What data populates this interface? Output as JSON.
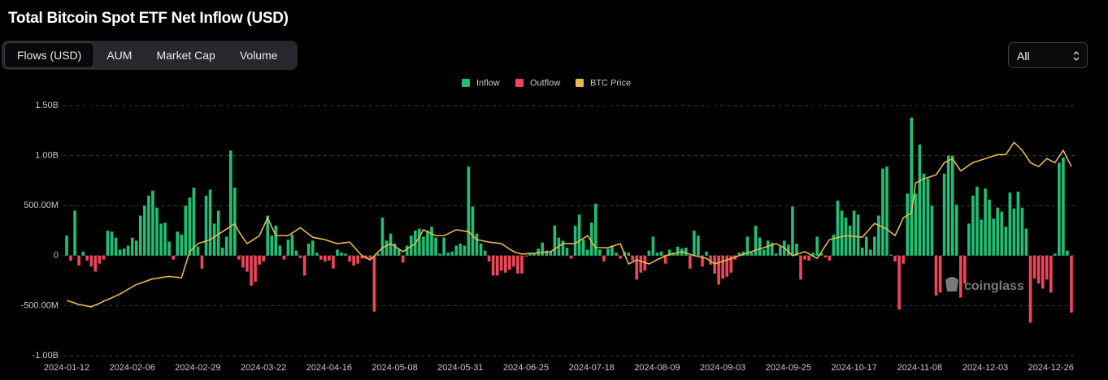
{
  "tabs": [
    "Flows (USD)",
    "AUM",
    "Market Cap",
    "Volume"
  ],
  "range_select": "All",
  "watermark": "coinglass",
  "chart_data": {
    "type": "bar",
    "title": "Total Bitcoin Spot ETF Net Inflow (USD)",
    "ylim": [
      -1000000000.0,
      1500000000.0
    ],
    "yticks": [
      {
        "value": 1500000000.0,
        "label": "1.50B"
      },
      {
        "value": 1000000000.0,
        "label": "1.00B"
      },
      {
        "value": 500000000.0,
        "label": "500.00M"
      },
      0,
      {
        "value": -500000000.0,
        "label": "-500.00M"
      },
      {
        "value": -1000000000.0,
        "label": "-1.00B"
      }
    ],
    "y2lim": [
      25300,
      119100
    ],
    "grid": true,
    "legend": "top",
    "categories": [
      "2024-01-12",
      null,
      null,
      null,
      null,
      null,
      null,
      null,
      null,
      null,
      null,
      null,
      null,
      null,
      null,
      null,
      "2024-02-06",
      null,
      null,
      null,
      null,
      null,
      null,
      null,
      null,
      null,
      null,
      null,
      null,
      null,
      null,
      null,
      "2024-02-29",
      null,
      null,
      null,
      null,
      null,
      null,
      null,
      null,
      null,
      null,
      null,
      null,
      null,
      null,
      null,
      "2024-03-22",
      null,
      null,
      null,
      null,
      null,
      null,
      null,
      null,
      null,
      null,
      null,
      null,
      null,
      null,
      null,
      "2024-04-16",
      null,
      null,
      null,
      null,
      null,
      null,
      null,
      null,
      null,
      null,
      null,
      null,
      null,
      null,
      null,
      "2024-05-08",
      null,
      null,
      null,
      null,
      null,
      null,
      null,
      null,
      null,
      null,
      null,
      null,
      null,
      null,
      null,
      "2024-05-31",
      null,
      null,
      null,
      null,
      null,
      null,
      null,
      null,
      null,
      null,
      null,
      null,
      null,
      null,
      null,
      "2024-06-25",
      null,
      null,
      null,
      null,
      null,
      null,
      null,
      null,
      null,
      null,
      null,
      null,
      null,
      null,
      null,
      "2024-07-18",
      null,
      null,
      null,
      null,
      null,
      null,
      null,
      null,
      null,
      null,
      null,
      null,
      null,
      null,
      null,
      "2024-08-09",
      null,
      null,
      null,
      null,
      null,
      null,
      null,
      null,
      null,
      null,
      null,
      null,
      null,
      null,
      null,
      "2024-09-03",
      null,
      null,
      null,
      null,
      null,
      null,
      null,
      null,
      null,
      null,
      null,
      null,
      null,
      null,
      null,
      "2024-09-25",
      null,
      null,
      null,
      null,
      null,
      null,
      null,
      null,
      null,
      null,
      null,
      null,
      null,
      null,
      null,
      "2024-10-17",
      null,
      null,
      null,
      null,
      null,
      null,
      null,
      null,
      null,
      null,
      null,
      null,
      null,
      null,
      null,
      "2024-11-08",
      null,
      null,
      null,
      null,
      null,
      null,
      null,
      null,
      null,
      null,
      null,
      null,
      null,
      null,
      null,
      "2024-12-03",
      null,
      null,
      null,
      null,
      null,
      null,
      null,
      null,
      null,
      null,
      null,
      null,
      null,
      null,
      null,
      "2024-12-26",
      null,
      null,
      null,
      null,
      null
    ],
    "series": [
      {
        "name": "Inflow",
        "color": "#1fbf75",
        "values": [
          200000000.0,
          null,
          450000000.0,
          null,
          40000000.0,
          null,
          null,
          null,
          null,
          null,
          250000000.0,
          240000000.0,
          180000000.0,
          60000000.0,
          70000000.0,
          100000000.0,
          180000000.0,
          150000000.0,
          400000000.0,
          500000000.0,
          600000000.0,
          650000000.0,
          480000000.0,
          320000000.0,
          330000000.0,
          140000000.0,
          null,
          240000000.0,
          210000000.0,
          500000000.0,
          580000000.0,
          680000000.0,
          90000000.0,
          null,
          600000000.0,
          660000000.0,
          320000000.0,
          450000000.0,
          80000000.0,
          190000000.0,
          1050000000.0,
          680000000.0,
          null,
          null,
          null,
          null,
          null,
          null,
          null,
          400000000.0,
          200000000.0,
          300000000.0,
          100000000.0,
          null,
          160000000.0,
          210000000.0,
          50000000.0,
          null,
          null,
          120000000.0,
          150000000.0,
          30000000.0,
          null,
          null,
          null,
          null,
          60000000.0,
          30000000.0,
          20000000.0,
          null,
          null,
          null,
          null,
          null,
          null,
          null,
          20000000.0,
          380000000.0,
          150000000.0,
          220000000.0,
          120000000.0,
          60000000.0,
          null,
          100000000.0,
          200000000.0,
          250000000.0,
          270000000.0,
          190000000.0,
          250000000.0,
          290000000.0,
          180000000.0,
          20000000.0,
          180000000.0,
          30000000.0,
          40000000.0,
          100000000.0,
          120000000.0,
          100000000.0,
          890000000.0,
          490000000.0,
          220000000.0,
          120000000.0,
          50000000.0,
          null,
          null,
          null,
          null,
          null,
          null,
          null,
          null,
          null,
          null,
          30000000.0,
          20000000.0,
          70000000.0,
          130000000.0,
          50000000.0,
          40000000.0,
          300000000.0,
          180000000.0,
          150000000.0,
          80000000.0,
          null,
          300000000.0,
          410000000.0,
          160000000.0,
          60000000.0,
          330000000.0,
          520000000.0,
          60000000.0,
          null,
          70000000.0,
          100000000.0,
          30000000.0,
          null,
          40000000.0,
          30000000.0,
          null,
          null,
          null,
          null,
          50000000.0,
          190000000.0,
          30000000.0,
          40000000.0,
          null,
          60000000.0,
          30000000.0,
          90000000.0,
          70000000.0,
          80000000.0,
          null,
          250000000.0,
          200000000.0,
          null,
          40000000.0,
          null,
          null,
          null,
          null,
          null,
          null,
          null,
          30000000.0,
          40000000.0,
          190000000.0,
          30000000.0,
          300000000.0,
          180000000.0,
          60000000.0,
          150000000.0,
          130000000.0,
          20000000.0,
          90000000.0,
          150000000.0,
          110000000.0,
          490000000.0,
          120000000.0,
          null,
          null,
          null,
          30000000.0,
          190000000.0,
          30000000.0,
          null,
          null,
          210000000.0,
          550000000.0,
          450000000.0,
          380000000.0,
          300000000.0,
          450000000.0,
          410000000.0,
          80000000.0,
          190000000.0,
          60000000.0,
          190000000.0,
          400000000.0,
          870000000.0,
          890000000.0,
          10000000.0,
          null,
          null,
          null,
          620000000.0,
          1380000000.0,
          620000000.0,
          1110000000.0,
          820000000.0,
          770000000.0,
          500000000.0,
          null,
          null,
          820000000.0,
          1000000000.0,
          1000000000.0,
          510000000.0,
          null,
          null,
          320000000.0,
          600000000.0,
          690000000.0,
          360000000.0,
          670000000.0,
          560000000.0,
          370000000.0,
          480000000.0,
          440000000.0,
          290000000.0,
          630000000.0,
          470000000.0,
          640000000.0,
          480000000.0,
          270000000.0,
          null,
          null,
          null,
          null,
          null,
          null,
          20000000.0,
          930000000.0,
          980000000.0,
          50000000.0,
          null
        ]
      },
      {
        "name": "Outflow",
        "color": "#f0465a",
        "values": [
          null,
          -50000000.0,
          null,
          -100000000.0,
          null,
          -50000000.0,
          -110000000.0,
          -160000000.0,
          -80000000.0,
          -40000000.0,
          null,
          null,
          null,
          null,
          null,
          null,
          null,
          null,
          null,
          null,
          null,
          null,
          null,
          null,
          null,
          null,
          -40000000.0,
          null,
          null,
          null,
          null,
          null,
          null,
          -130000000.0,
          null,
          null,
          null,
          null,
          null,
          null,
          null,
          null,
          -40000000.0,
          -120000000.0,
          -160000000.0,
          -300000000.0,
          -260000000.0,
          -90000000.0,
          -60000000.0,
          null,
          null,
          null,
          null,
          -40000000.0,
          null,
          null,
          null,
          -25000000.0,
          -200000000.0,
          null,
          null,
          null,
          -40000000.0,
          -60000000.0,
          -50000000.0,
          -130000000.0,
          null,
          null,
          null,
          -60000000.0,
          -100000000.0,
          -80000000.0,
          -30000000.0,
          -30000000.0,
          -30000000.0,
          -560000000.0,
          null,
          null,
          null,
          null,
          null,
          null,
          -70000000.0,
          null,
          null,
          null,
          null,
          null,
          null,
          null,
          null,
          null,
          null,
          null,
          null,
          null,
          null,
          null,
          null,
          null,
          null,
          null,
          null,
          -60000000.0,
          -200000000.0,
          -200000000.0,
          -150000000.0,
          -170000000.0,
          -140000000.0,
          -110000000.0,
          -180000000.0,
          -180000000.0,
          -10000000.0,
          null,
          null,
          null,
          null,
          null,
          null,
          null,
          null,
          null,
          null,
          -30000000.0,
          null,
          null,
          null,
          null,
          null,
          null,
          null,
          -60000000.0,
          null,
          null,
          null,
          -30000000.0,
          null,
          null,
          -50000000.0,
          -240000000.0,
          -170000000.0,
          -150000000.0,
          null,
          null,
          null,
          null,
          -80000000.0,
          null,
          null,
          null,
          null,
          null,
          -130000000.0,
          null,
          null,
          -110000000.0,
          null,
          -90000000.0,
          -180000000.0,
          -290000000.0,
          -230000000.0,
          -210000000.0,
          -170000000.0,
          -40000000.0,
          null,
          null,
          null,
          null,
          null,
          null,
          null,
          null,
          null,
          null,
          null,
          null,
          null,
          null,
          null,
          -240000000.0,
          -40000000.0,
          -50000000.0,
          null,
          null,
          null,
          -20000000.0,
          -50000000.0,
          null,
          null,
          null,
          null,
          null,
          null,
          null,
          null,
          null,
          null,
          null,
          null,
          null,
          null,
          null,
          -60000000.0,
          -540000000.0,
          -80000000.0,
          null,
          null,
          null,
          null,
          null,
          null,
          null,
          -400000000.0,
          -370000000.0,
          null,
          null,
          null,
          null,
          -420000000.0,
          -280000000.0,
          null,
          null,
          null,
          null,
          null,
          null,
          null,
          null,
          null,
          null,
          null,
          null,
          null,
          null,
          null,
          -670000000.0,
          -230000000.0,
          -280000000.0,
          -330000000.0,
          -240000000.0,
          -370000000.0,
          null,
          null,
          null,
          null,
          -570000000.0
        ]
      },
      {
        "name": "BTC Price",
        "color": "#e8b84c",
        "type": "line",
        "axis": "y2",
        "values": [
          46000,
          45500,
          45000,
          44500,
          44200,
          43900,
          43600,
          44300,
          44900,
          45700,
          46300,
          47000,
          47700,
          48400,
          49300,
          50200,
          51100,
          52000,
          52500,
          53000,
          53600,
          54100,
          54300,
          54600,
          54800,
          55000,
          54800,
          54700,
          54500,
          59400,
          64300,
          65800,
          67300,
          67800,
          68300,
          68800,
          69800,
          70800,
          71800,
          72800,
          73800,
          74800,
          71800,
          69500,
          67300,
          68300,
          69300,
          70300,
          73600,
          77000,
          73600,
          70300,
          70300,
          70300,
          70300,
          71300,
          72300,
          73300,
          72100,
          70900,
          69700,
          69400,
          69100,
          68800,
          68300,
          67800,
          67300,
          67500,
          67700,
          67900,
          66200,
          64500,
          62800,
          62000,
          61200,
          62700,
          64300,
          65800,
          66500,
          67300,
          66300,
          65300,
          64300,
          65300,
          66300,
          67300,
          69900,
          72500,
          71800,
          71000,
          70300,
          70300,
          70300,
          71000,
          71800,
          72500,
          72300,
          72000,
          71800,
          70300,
          68800,
          68500,
          68200,
          67900,
          67700,
          67500,
          67300,
          66300,
          65300,
          64300,
          63800,
          63400,
          63500,
          63600,
          63700,
          63900,
          64000,
          64200,
          64300,
          65300,
          66300,
          67300,
          67300,
          67300,
          67300,
          68300,
          69300,
          70300,
          68000,
          65800,
          65800,
          65800,
          65800,
          66300,
          66800,
          67300,
          63500,
          59700,
          60400,
          61200,
          60700,
          60200,
          59700,
          60500,
          61300,
          62000,
          62800,
          63200,
          63600,
          63900,
          64300,
          63800,
          63300,
          62800,
          62500,
          62100,
          61800,
          60700,
          59700,
          60200,
          60700,
          61200,
          61700,
          62300,
          62800,
          63300,
          63800,
          64300,
          64800,
          65300,
          65800,
          66300,
          66800,
          67300,
          66500,
          65800,
          64300,
          62800,
          63300,
          63800,
          64300,
          63500,
          62600,
          61800,
          64100,
          66500,
          68800,
          69200,
          69600,
          69900,
          70300,
          70200,
          70000,
          69900,
          69700,
          71400,
          73200,
          74900,
          74200,
          73500,
          72800,
          71500,
          70300,
          73600,
          77000,
          77900,
          78800,
          90100,
          90800,
          91600,
          92100,
          92600,
          93100,
          95400,
          97700,
          98400,
          99200,
          96900,
          94600,
          95600,
          96700,
          97700,
          98200,
          98700,
          99200,
          99700,
          100200,
          100700,
          100700,
          100700,
          103000,
          105300,
          103800,
          102300,
          100000,
          97700,
          96900,
          96200,
          97700,
          99200,
          98400,
          97700,
          100000,
          102300,
          99200,
          96200
        ]
      }
    ]
  }
}
